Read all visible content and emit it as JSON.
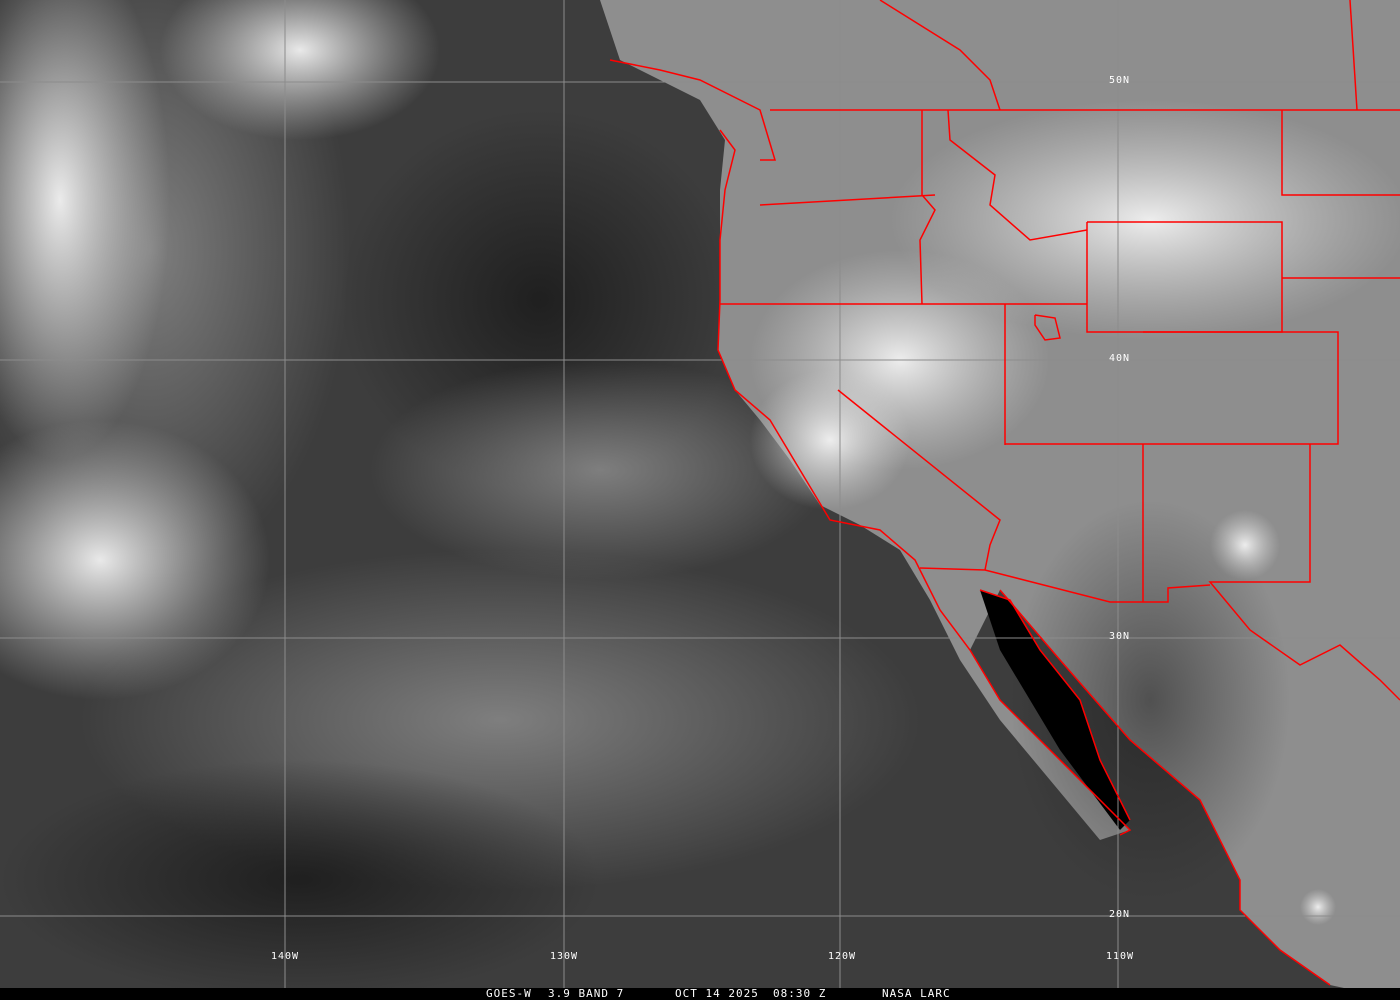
{
  "image": {
    "satellite": "GOES-W",
    "channel": "3.9 BAND 7",
    "date": "OCT 14 2025",
    "time": "08:30 Z",
    "credit": "NASA LARC"
  },
  "grid": {
    "latitudes": [
      "50N",
      "40N",
      "30N",
      "20N"
    ],
    "longitudes": [
      "140W",
      "130W",
      "120W",
      "110W"
    ]
  },
  "colors": {
    "borders": "#ff0000",
    "gridlines": "#8c8c8c",
    "labels": "#ffffff",
    "caption_bg": "#000000"
  }
}
